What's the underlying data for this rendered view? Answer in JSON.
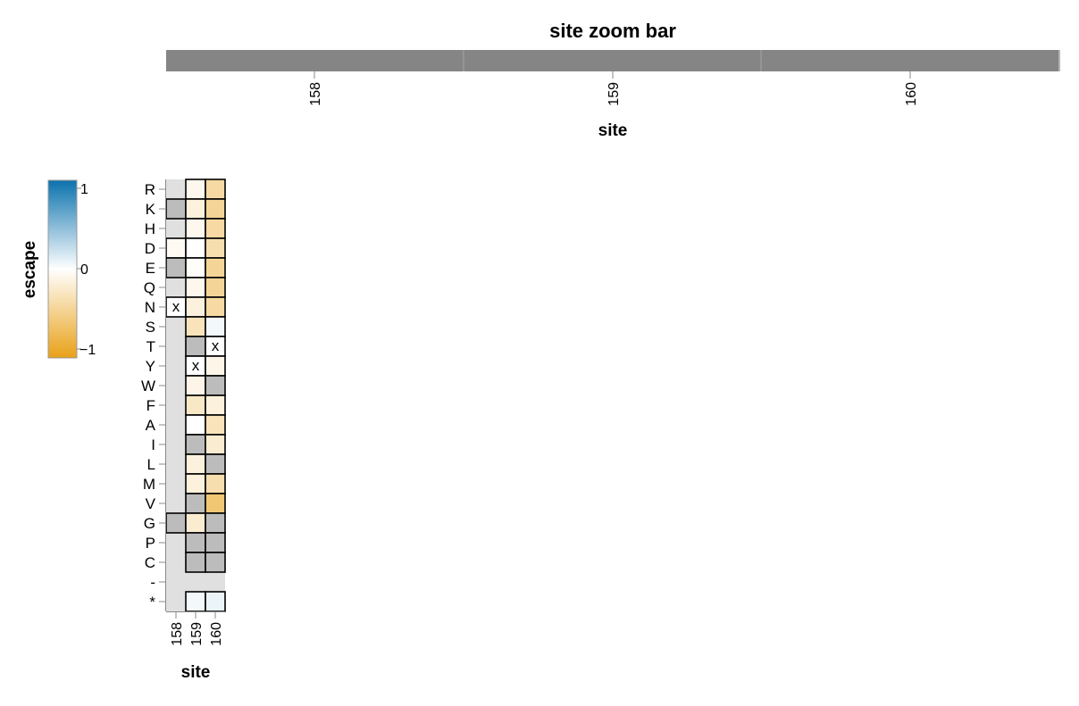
{
  "zoom_bar": {
    "title": "site zoom bar",
    "xlabel": "site",
    "ticks": [
      "158",
      "159",
      "160"
    ]
  },
  "legend": {
    "title": "escape",
    "ticks": [
      "1",
      "0",
      "−1"
    ],
    "colors": {
      "positive": "#0b72ad",
      "zero": "#ffffff",
      "negative": "#e8a118"
    }
  },
  "chart_data": {
    "type": "heatmap",
    "xlabel": "site",
    "x": [
      "158",
      "159",
      "160"
    ],
    "y": [
      "R",
      "K",
      "H",
      "D",
      "E",
      "Q",
      "N",
      "S",
      "T",
      "Y",
      "W",
      "F",
      "A",
      "I",
      "L",
      "M",
      "V",
      "G",
      "P",
      "C",
      "-",
      "*"
    ],
    "value_range": [
      -1,
      1
    ],
    "wildtype_mark": "x",
    "cells": {
      "158": {
        "R": "missing",
        "K": "nodata",
        "H": "missing",
        "D": -0.05,
        "E": "nodata",
        "Q": "missing",
        "N": "wildtype",
        "S": "missing",
        "T": "missing",
        "Y": "missing",
        "W": "missing",
        "F": "missing",
        "A": "missing",
        "I": "missing",
        "L": "missing",
        "M": "missing",
        "V": "missing",
        "G": "nodata",
        "P": "missing",
        "C": "missing",
        "-": "missing",
        "*": "missing"
      },
      "159": {
        "R": -0.08,
        "K": -0.15,
        "H": -0.08,
        "D": 0.0,
        "E": -0.02,
        "Q": -0.08,
        "N": -0.15,
        "S": -0.3,
        "T": "nodata",
        "Y": "wildtype",
        "W": -0.1,
        "F": -0.25,
        "A": 0.0,
        "I": "nodata",
        "L": -0.15,
        "M": -0.15,
        "V": "nodata",
        "G": -0.2,
        "P": "nodata",
        "C": "nodata",
        "-": "missing",
        "*": 0.05
      },
      "160": {
        "R": -0.4,
        "K": -0.45,
        "H": -0.4,
        "D": -0.35,
        "E": -0.45,
        "Q": -0.45,
        "N": -0.4,
        "S": 0.05,
        "T": "wildtype",
        "Y": -0.1,
        "W": "nodata",
        "F": -0.15,
        "A": -0.3,
        "I": -0.2,
        "L": "nodata",
        "M": -0.35,
        "V": -0.6,
        "G": "nodata",
        "P": "nodata",
        "C": "nodata",
        "-": "missing",
        "*": 0.08
      }
    }
  }
}
